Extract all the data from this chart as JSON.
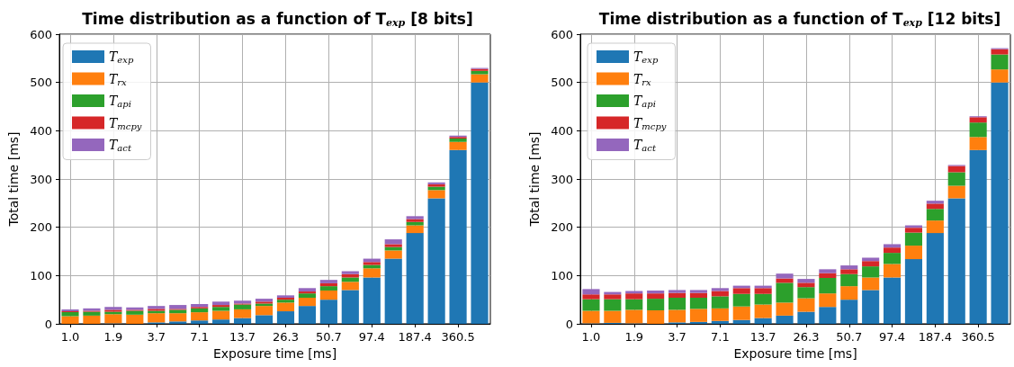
{
  "chart_data": [
    {
      "type": "bar",
      "title": "Time distribution as a function of T$_{exp}$ [8 bits]",
      "xlabel": "Exposure time [ms]",
      "ylabel": "Total time [ms]",
      "categories": [
        "1.0",
        null,
        "1.9",
        null,
        "3.7",
        null,
        "7.1",
        null,
        "13.7",
        null,
        "26.3",
        null,
        "50.7",
        null,
        "97.4",
        null,
        "187.4",
        null,
        "360.5",
        null
      ],
      "stacked": true,
      "ylim": [
        0,
        600
      ],
      "yticks": [
        0,
        100,
        200,
        300,
        400,
        500,
        600
      ],
      "grid": true,
      "legend": "top left",
      "series": [
        {
          "name": "T$_{exp}$",
          "color": "#1f77b4",
          "values": [
            null,
            null,
            1,
            null,
            3,
            5,
            7,
            9,
            12,
            18,
            26,
            37,
            50,
            70,
            96,
            135,
            188,
            260,
            360,
            500
          ]
        },
        {
          "name": "T$_{rx}$",
          "color": "#ff7f0e",
          "values": [
            16,
            17,
            19,
            19,
            19,
            17,
            17,
            18,
            18,
            19,
            18,
            17,
            19,
            17,
            19,
            17,
            16,
            17,
            17,
            17
          ]
        },
        {
          "name": "T$_{api}$",
          "color": "#2ca02c",
          "values": [
            8,
            8,
            5,
            8,
            5,
            7,
            8,
            8,
            10,
            5,
            6,
            9,
            9,
            9,
            7,
            7,
            7,
            7,
            7,
            7
          ]
        },
        {
          "name": "T$_{mcpy}$",
          "color": "#d62728",
          "values": [
            2,
            2,
            4,
            2,
            4,
            2,
            3,
            4,
            2,
            4,
            4,
            4,
            6,
            7,
            6,
            6,
            6,
            5,
            3,
            4
          ]
        },
        {
          "name": "T$_{act}$",
          "color": "#9467bd",
          "values": [
            4,
            5,
            6,
            5,
            6,
            8,
            6,
            7,
            6,
            6,
            5,
            7,
            7,
            6,
            7,
            10,
            6,
            4,
            3,
            2
          ]
        }
      ]
    },
    {
      "type": "bar",
      "title": "Time distribution as a function of T$_{exp}$ [12 bits]",
      "xlabel": "Exposure time [ms]",
      "ylabel": "Total time [ms]",
      "categories": [
        "1.0",
        null,
        "1.9",
        null,
        "3.7",
        null,
        "7.1",
        null,
        "13.7",
        null,
        "26.3",
        null,
        "50.7",
        null,
        "97.4",
        null,
        "187.4",
        null,
        "360.5",
        null
      ],
      "stacked": true,
      "ylim": [
        0,
        600
      ],
      "yticks": [
        0,
        100,
        200,
        300,
        400,
        500,
        600
      ],
      "grid": true,
      "legend": "top left",
      "series": [
        {
          "name": "T$_{exp}$",
          "color": "#1f77b4",
          "values": [
            1,
            2,
            1,
            null,
            3,
            4,
            6,
            8,
            12,
            17,
            25,
            35,
            50,
            70,
            96,
            134,
            188,
            260,
            360,
            500
          ]
        },
        {
          "name": "T$_{rx}$",
          "color": "#ff7f0e",
          "values": [
            26,
            25,
            28,
            28,
            26,
            27,
            26,
            28,
            28,
            27,
            28,
            28,
            28,
            26,
            28,
            28,
            26,
            26,
            27,
            27
          ]
        },
        {
          "name": "T$_{api}$",
          "color": "#2ca02c",
          "values": [
            24,
            24,
            22,
            24,
            25,
            23,
            25,
            26,
            22,
            41,
            23,
            32,
            25,
            23,
            23,
            27,
            24,
            28,
            30,
            31
          ]
        },
        {
          "name": "T$_{mcpy}$",
          "color": "#d62728",
          "values": [
            10,
            10,
            12,
            11,
            10,
            10,
            11,
            12,
            12,
            9,
            9,
            10,
            10,
            11,
            11,
            10,
            11,
            13,
            11,
            11
          ]
        },
        {
          "name": "T$_{act}$",
          "color": "#9467bd",
          "values": [
            11,
            5,
            5,
            6,
            6,
            6,
            6,
            5,
            5,
            10,
            8,
            8,
            8,
            7,
            7,
            5,
            6,
            2,
            2,
            2
          ]
        }
      ]
    }
  ]
}
